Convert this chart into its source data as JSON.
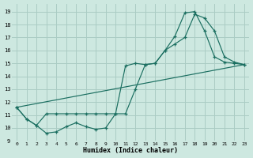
{
  "xlabel": "Humidex (Indice chaleur)",
  "bg_color": "#cde8e0",
  "grid_color": "#aaccc4",
  "line_color": "#1a6e60",
  "xlim": [
    -0.5,
    23.5
  ],
  "ylim": [
    9.0,
    19.6
  ],
  "yticks": [
    9,
    10,
    11,
    12,
    13,
    14,
    15,
    16,
    17,
    18,
    19
  ],
  "xticks": [
    0,
    1,
    2,
    3,
    4,
    5,
    6,
    7,
    8,
    9,
    10,
    11,
    12,
    13,
    14,
    15,
    16,
    17,
    18,
    19,
    20,
    21,
    22,
    23
  ],
  "series1_x": [
    0,
    1,
    2,
    3,
    4,
    5,
    6,
    7,
    8,
    9,
    10,
    11,
    12,
    13,
    14,
    15,
    16,
    17,
    18,
    19,
    20,
    21,
    22,
    23
  ],
  "series1_y": [
    11.6,
    10.7,
    10.2,
    9.6,
    9.7,
    10.1,
    10.4,
    10.1,
    9.9,
    10.0,
    11.1,
    11.1,
    13.0,
    14.9,
    15.0,
    16.0,
    17.1,
    18.9,
    19.0,
    17.5,
    15.5,
    15.1,
    15.0,
    14.9
  ],
  "series2_x": [
    0,
    1,
    2,
    3,
    4,
    5,
    6,
    7,
    8,
    9,
    10,
    11,
    12,
    13,
    14,
    15,
    16,
    17,
    18,
    19,
    20,
    21,
    22,
    23
  ],
  "series2_y": [
    11.6,
    10.7,
    10.2,
    11.1,
    11.1,
    11.1,
    11.1,
    11.1,
    11.1,
    11.1,
    11.1,
    14.8,
    15.0,
    14.9,
    15.0,
    16.0,
    16.5,
    17.0,
    18.8,
    18.5,
    17.5,
    15.5,
    15.1,
    14.9
  ],
  "series3_x": [
    0,
    23
  ],
  "series3_y": [
    11.6,
    14.9
  ]
}
